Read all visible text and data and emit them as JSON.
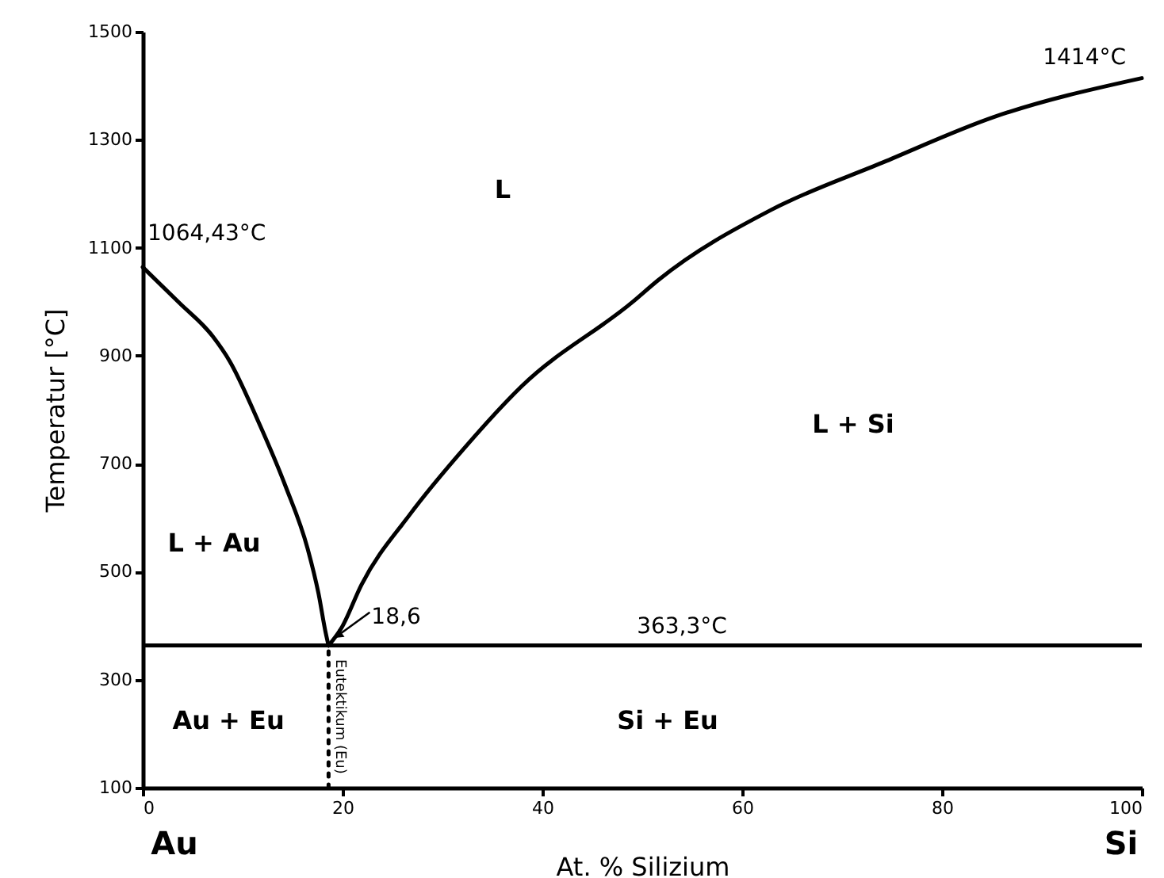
{
  "chart_data": {
    "type": "line",
    "xlabel": "At. % Silizium",
    "ylabel": "Temperatur [°C]",
    "xlim": [
      0,
      100
    ],
    "ylim": [
      100,
      1500
    ],
    "xticks": [
      0,
      20,
      40,
      60,
      80,
      100
    ],
    "yticks": [
      100,
      300,
      500,
      700,
      900,
      1100,
      1300,
      1500
    ],
    "series": [
      {
        "color": "#000000",
        "x": [
          0,
          3.65,
          7.0,
          8.7,
          11.5,
          14.3,
          16.5,
          17.6,
          18.3,
          18.6
        ],
        "values": [
          1064,
          998,
          936,
          890,
          781,
          658,
          543,
          459,
          388,
          363
        ]
      },
      {
        "color": "#000000",
        "x": [
          18.6,
          19.9,
          21.9,
          26.7,
          32.2,
          37.9,
          49.0,
          51.6,
          62.9,
          74.1,
          85.2,
          100
        ],
        "values": [
          363,
          396,
          476,
          605,
          729,
          843,
          999,
          1040,
          1170,
          1258,
          1342,
          1414
        ]
      },
      {
        "name": "Eutektikum (Eu)",
        "color": "#000000",
        "line_style": "dotted",
        "x": [
          18.6,
          18.6
        ],
        "values": [
          100,
          363
        ]
      }
    ],
    "ref_lines": [
      {
        "axis": "y",
        "value": 363.3,
        "label": "363,3°C"
      }
    ],
    "annotations": [
      {
        "text": "1064,43°C",
        "x": 0,
        "y": 1064
      },
      {
        "text": "1414°C",
        "x": 100,
        "y": 1414
      },
      {
        "text": "18,6",
        "x": 18.6,
        "y": 363
      },
      "L",
      "L + Au",
      "L + Si",
      "Au + Eu",
      "Si + Eu",
      "Au",
      "Si"
    ]
  }
}
